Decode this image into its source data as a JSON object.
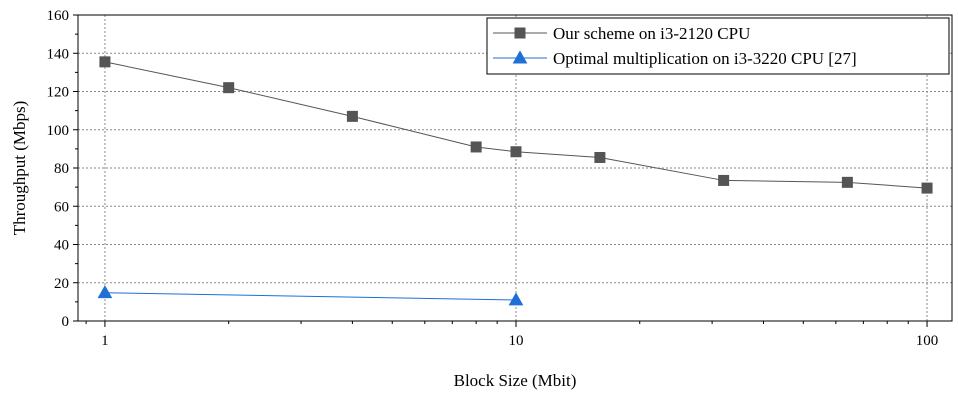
{
  "chart_data": {
    "type": "line",
    "title": "",
    "xlabel": "Block Size (Mbit)",
    "ylabel": "Throughput (Mbps)",
    "x_scale": "log",
    "xlim": [
      0.86,
      115
    ],
    "ylim": [
      0,
      160
    ],
    "x_ticks": [
      1,
      10,
      100
    ],
    "x_tick_labels": [
      "1",
      "10",
      "100"
    ],
    "y_ticks": [
      0,
      20,
      40,
      60,
      80,
      100,
      120,
      140,
      160
    ],
    "y_tick_labels": [
      "0",
      "20",
      "40",
      "60",
      "80",
      "100",
      "120",
      "140",
      "160"
    ],
    "grid": true,
    "legend_position": "top-right",
    "series": [
      {
        "name": "Our scheme on i3-2120  CPU",
        "marker": "square",
        "color": "#555555",
        "x": [
          1,
          2,
          4,
          8,
          10,
          16,
          32,
          64,
          100
        ],
        "y": [
          135.5,
          122,
          107,
          91,
          88.5,
          85.5,
          73.5,
          72.5,
          69.5
        ]
      },
      {
        "name": "Optimal multiplication on i3-3220 CPU [27]",
        "marker": "triangle",
        "color": "#1f6fd6",
        "x": [
          1,
          10
        ],
        "y": [
          14.8,
          11
        ]
      }
    ]
  }
}
